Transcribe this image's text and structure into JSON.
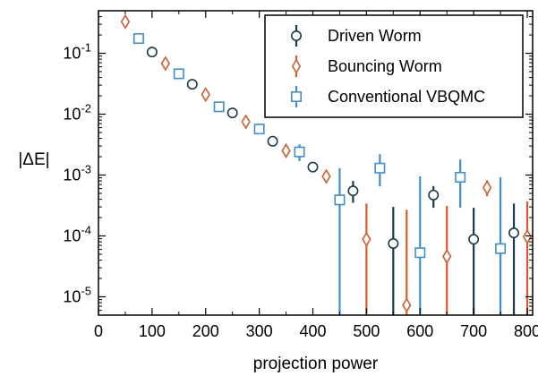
{
  "chart_data": {
    "type": "scatter",
    "xlabel": "projection power",
    "ylabel": "|ΔE|",
    "xlim": [
      0,
      810
    ],
    "ylim": [
      5e-06,
      0.5
    ],
    "yscale": "log",
    "x_ticks": [
      0,
      100,
      200,
      300,
      400,
      500,
      600,
      700,
      800
    ],
    "y_ticks": [
      {
        "value": 1e-05,
        "base": "10",
        "exp": "-5"
      },
      {
        "value": 0.0001,
        "base": "10",
        "exp": "-4"
      },
      {
        "value": 0.001,
        "base": "10",
        "exp": "-3"
      },
      {
        "value": 0.01,
        "base": "10",
        "exp": "-2"
      },
      {
        "value": 0.1,
        "base": "10",
        "exp": "-1"
      }
    ],
    "legend_position": "top-right",
    "series": [
      {
        "name": "Driven Worm",
        "marker": "circle",
        "color": "#1b3a4b",
        "points": [
          {
            "x": 100,
            "y": 0.105
          },
          {
            "x": 175,
            "y": 0.031
          },
          {
            "x": 250,
            "y": 0.0105
          },
          {
            "x": 325,
            "y": 0.0036
          },
          {
            "x": 400,
            "y": 0.00135
          },
          {
            "x": 475,
            "y": 0.00055,
            "lo": 0.00035,
            "hi": 0.0008
          },
          {
            "x": 550,
            "y": 7.5e-05,
            "lo": 1e-06,
            "hi": 0.0003
          },
          {
            "x": 625,
            "y": 0.00047,
            "lo": 0.00029,
            "hi": 0.00066
          },
          {
            "x": 700,
            "y": 8.8e-05,
            "lo": 1e-06,
            "hi": 0.00029
          },
          {
            "x": 775,
            "y": 0.000112,
            "lo": 1e-06,
            "hi": 0.00034
          }
        ]
      },
      {
        "name": "Bouncing Worm",
        "marker": "diamond",
        "color": "#d95b2b",
        "points": [
          {
            "x": 50,
            "y": 0.33
          },
          {
            "x": 125,
            "y": 0.068
          },
          {
            "x": 200,
            "y": 0.021
          },
          {
            "x": 275,
            "y": 0.0075
          },
          {
            "x": 350,
            "y": 0.0025
          },
          {
            "x": 425,
            "y": 0.00095
          },
          {
            "x": 500,
            "y": 8.8e-05,
            "lo": 1e-06,
            "hi": 0.00034
          },
          {
            "x": 575,
            "y": 7.3e-06,
            "lo": 1e-06,
            "hi": 0.00027
          },
          {
            "x": 650,
            "y": 4.6e-05,
            "lo": 1e-06,
            "hi": 0.00031
          },
          {
            "x": 725,
            "y": 0.00062,
            "lo": 0.00045,
            "hi": 0.00082
          },
          {
            "x": 800,
            "y": 9.7e-05,
            "lo": 1e-06,
            "hi": 0.00037
          }
        ]
      },
      {
        "name": "Conventional VBQMC",
        "marker": "square",
        "color": "#3d8fd1",
        "points": [
          {
            "x": 75,
            "y": 0.175
          },
          {
            "x": 150,
            "y": 0.046
          },
          {
            "x": 225,
            "y": 0.0132
          },
          {
            "x": 300,
            "y": 0.0057
          },
          {
            "x": 375,
            "y": 0.0024,
            "lo": 0.0017,
            "hi": 0.0032
          },
          {
            "x": 450,
            "y": 0.00039,
            "lo": 1e-06,
            "hi": 0.0013
          },
          {
            "x": 525,
            "y": 0.0013,
            "lo": 0.00065,
            "hi": 0.0022
          },
          {
            "x": 600,
            "y": 5.3e-05,
            "lo": 1e-06,
            "hi": 0.00095
          },
          {
            "x": 675,
            "y": 0.00092,
            "lo": 0.00029,
            "hi": 0.0018
          },
          {
            "x": 750,
            "y": 6.2e-05,
            "lo": 1e-06,
            "hi": 0.00092
          }
        ]
      }
    ]
  }
}
